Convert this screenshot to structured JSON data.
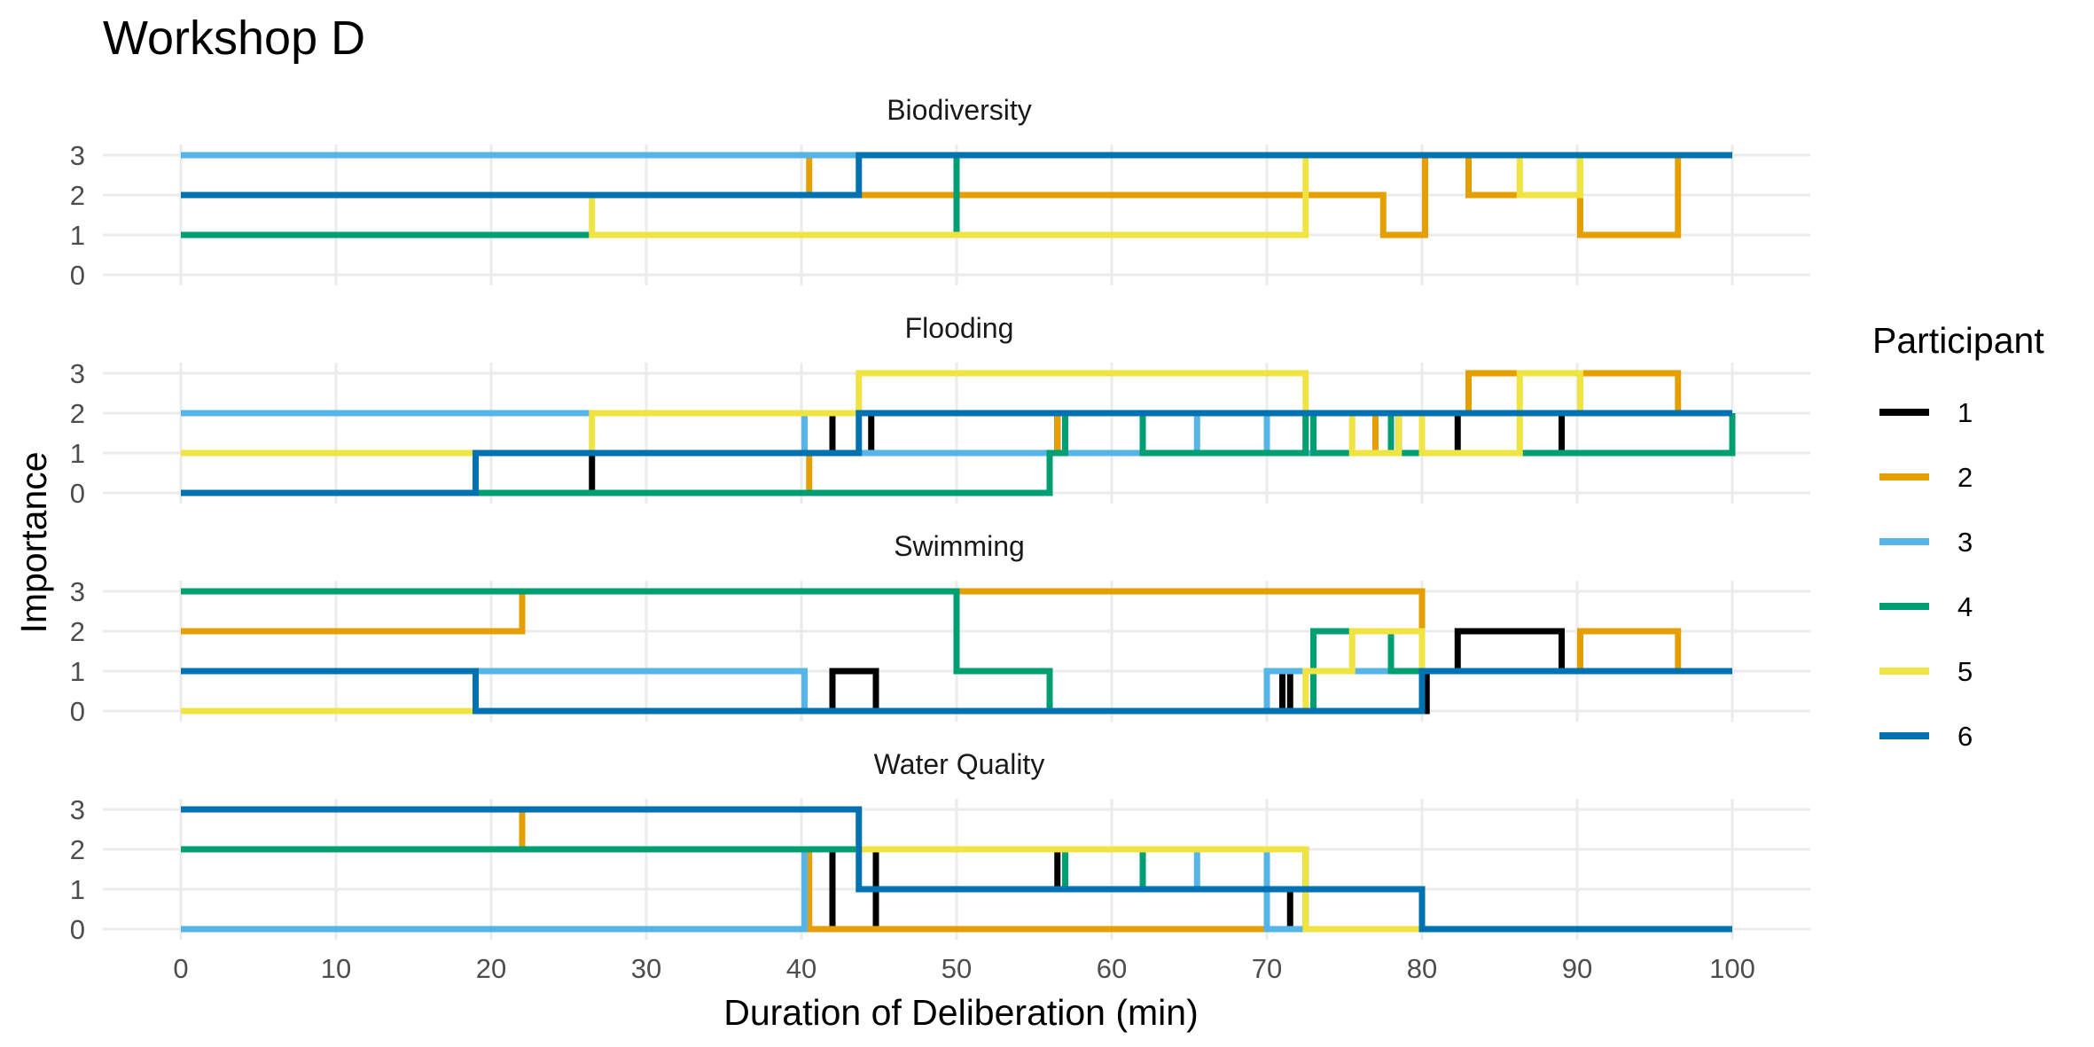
{
  "chart_data": {
    "type": "line",
    "title": "Workshop D",
    "xlabel": "Duration of Deliberation (min)",
    "ylabel": "Importance",
    "xlim": [
      0,
      100
    ],
    "ylim": [
      0,
      3
    ],
    "x_ticks": [
      "0",
      "10",
      "20",
      "30",
      "40",
      "50",
      "60",
      "70",
      "80",
      "90",
      "100"
    ],
    "y_ticks": [
      "0",
      "1",
      "2",
      "3"
    ],
    "grid": true,
    "step": "post",
    "legend": {
      "title": "Participant",
      "position": "right",
      "entries": [
        "1",
        "2",
        "3",
        "4",
        "5",
        "6"
      ]
    },
    "colors": [
      "#000000",
      "#E69F00",
      "#56B4E9",
      "#009E73",
      "#F0E442",
      "#0072B2"
    ],
    "facets": [
      {
        "title": "Biodiversity",
        "series": [
          {
            "name": "1",
            "x": [
              0,
              100
            ],
            "y": [
              3,
              3
            ]
          },
          {
            "name": "2",
            "x": [
              0,
              40.5,
              77.5,
              80.2,
              83,
              90.2,
              96.5,
              100
            ],
            "y": [
              3,
              2,
              1,
              3,
              2,
              1,
              3,
              3
            ]
          },
          {
            "name": "3",
            "x": [
              0,
              100
            ],
            "y": [
              3,
              3
            ]
          },
          {
            "name": "4",
            "x": [
              0,
              50,
              100
            ],
            "y": [
              1,
              3,
              3
            ]
          },
          {
            "name": "5",
            "x": [
              0,
              26.5,
              72.5,
              86.3,
              90.2,
              100
            ],
            "y": [
              2,
              1,
              3,
              2,
              3,
              3
            ]
          },
          {
            "name": "6",
            "x": [
              0,
              43.7,
              100
            ],
            "y": [
              2,
              3,
              3
            ]
          }
        ]
      },
      {
        "title": "Flooding",
        "series": [
          {
            "name": "1",
            "x": [
              0,
              26.5,
              42,
              44.5,
              56.5,
              82.3,
              89,
              100
            ],
            "y": [
              0,
              1,
              2,
              1,
              2,
              1,
              2,
              2
            ]
          },
          {
            "name": "2",
            "x": [
              0,
              40.5,
              56.5,
              62,
              72.5,
              77,
              80,
              83,
              96.5,
              100
            ],
            "y": [
              0,
              1,
              2,
              1,
              2,
              1,
              2,
              3,
              2,
              2
            ]
          },
          {
            "name": "3",
            "x": [
              0,
              40.2,
              65.5,
              70,
              100
            ],
            "y": [
              2,
              1,
              2,
              1,
              2
            ]
          },
          {
            "name": "4",
            "x": [
              0,
              56,
              57,
              62,
              72.5,
              73,
              78,
              78.5,
              100
            ],
            "y": [
              0,
              1,
              2,
              1,
              2,
              1,
              2,
              1,
              2
            ]
          },
          {
            "name": "5",
            "x": [
              0,
              26.5,
              43.7,
              72.5,
              75.5,
              78.5,
              80,
              86.3,
              90.2,
              100
            ],
            "y": [
              1,
              2,
              3,
              2,
              1,
              2,
              1,
              3,
              2,
              2
            ]
          },
          {
            "name": "6",
            "x": [
              0,
              19,
              43.7,
              100
            ],
            "y": [
              0,
              1,
              2,
              2
            ]
          }
        ]
      },
      {
        "title": "Swimming",
        "series": [
          {
            "name": "1",
            "x": [
              0,
              42,
              44.8,
              71,
              71.5,
              80.3,
              82.3,
              89,
              100
            ],
            "y": [
              0,
              1,
              0,
              1,
              0,
              1,
              2,
              1,
              1
            ]
          },
          {
            "name": "2",
            "x": [
              0,
              22,
              80,
              90.2,
              96.5,
              100
            ],
            "y": [
              2,
              3,
              1,
              2,
              1,
              1
            ]
          },
          {
            "name": "3",
            "x": [
              0,
              40.2,
              70,
              100
            ],
            "y": [
              1,
              0,
              1,
              1
            ]
          },
          {
            "name": "4",
            "x": [
              0,
              50,
              56,
              73,
              78,
              100
            ],
            "y": [
              3,
              1,
              0,
              2,
              1,
              1
            ]
          },
          {
            "name": "5",
            "x": [
              0,
              72.5,
              75.5,
              80,
              100
            ],
            "y": [
              0,
              1,
              2,
              1,
              1
            ]
          },
          {
            "name": "6",
            "x": [
              0,
              19,
              80,
              100
            ],
            "y": [
              1,
              0,
              1,
              1
            ]
          }
        ]
      },
      {
        "title": "Water Quality",
        "series": [
          {
            "name": "1",
            "x": [
              0,
              42,
              44.8,
              56.5,
              71.5,
              100
            ],
            "y": [
              2,
              0,
              2,
              1,
              0,
              0
            ]
          },
          {
            "name": "2",
            "x": [
              0,
              22,
              40.5,
              100
            ],
            "y": [
              3,
              2,
              0,
              0
            ]
          },
          {
            "name": "3",
            "x": [
              0,
              40.2,
              62,
              65.5,
              70,
              100
            ],
            "y": [
              0,
              2,
              1,
              2,
              0,
              0
            ]
          },
          {
            "name": "4",
            "x": [
              0,
              57,
              62,
              72.5,
              100
            ],
            "y": [
              2,
              1,
              2,
              0,
              0
            ]
          },
          {
            "name": "5",
            "x": [
              0,
              43.7,
              72.5,
              100
            ],
            "y": [
              3,
              2,
              0,
              0
            ]
          },
          {
            "name": "6",
            "x": [
              0,
              43.7,
              80,
              100
            ],
            "y": [
              3,
              1,
              0,
              0
            ]
          }
        ]
      }
    ]
  }
}
